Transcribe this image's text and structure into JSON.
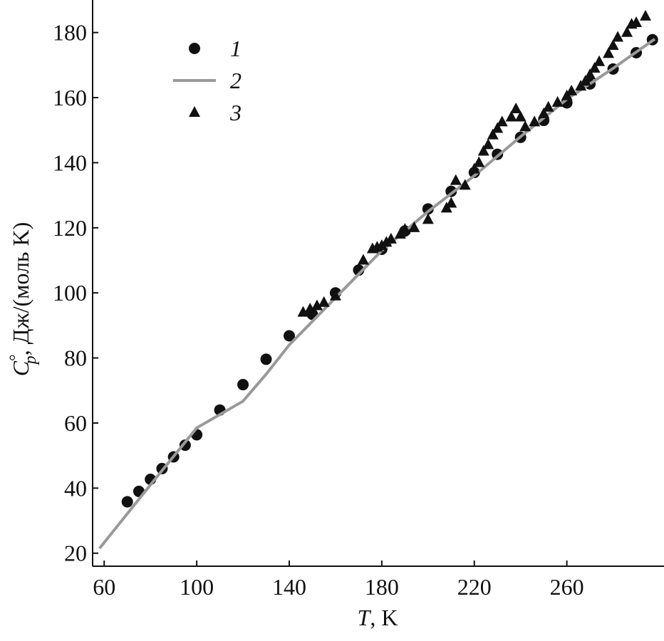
{
  "chart_data": {
    "type": "scatter",
    "xlabel": [
      "T",
      ", K"
    ],
    "ylabel": [
      "C",
      "°",
      "p",
      ", Дж/(моль K)"
    ],
    "xlim": [
      55,
      302
    ],
    "ylim": [
      16,
      190
    ],
    "xticks": [
      60,
      100,
      140,
      180,
      220,
      260
    ],
    "yticks": [
      20,
      40,
      60,
      80,
      100,
      120,
      140,
      160,
      180
    ],
    "series": [
      {
        "name": "1",
        "kind": "circle",
        "color": "#111111",
        "x": [
          70,
          75,
          80,
          85,
          90,
          95,
          100,
          110,
          120,
          130,
          140,
          150,
          160,
          170,
          180,
          190,
          200,
          210,
          220,
          230,
          240,
          250,
          260,
          270,
          280,
          290,
          297
        ],
        "values": [
          35.8,
          39,
          42.7,
          46,
          49.6,
          53.2,
          56.4,
          64,
          71.8,
          79.6,
          86.8,
          93.4,
          100,
          107,
          113.4,
          119,
          125.8,
          131.2,
          137,
          142.6,
          147.8,
          153,
          158.4,
          164.2,
          168.8,
          173.8,
          177.8
        ]
      },
      {
        "name": "2",
        "kind": "line",
        "color": "#999999",
        "x": [
          58,
          80,
          100,
          120,
          130,
          140,
          160,
          180,
          200,
          220,
          240,
          260,
          280,
          298
        ],
        "values": [
          21.5,
          41,
          58.5,
          66.7,
          75,
          84,
          98.5,
          113,
          125,
          136,
          148,
          159.5,
          169,
          178
        ]
      },
      {
        "name": "3",
        "kind": "triangle",
        "color": "#111111",
        "x": [
          146,
          149,
          152,
          155,
          160,
          172,
          176,
          178,
          180,
          182,
          184,
          188,
          190,
          194,
          200,
          208,
          210,
          212,
          216,
          220,
          222,
          224,
          226,
          228,
          230,
          232,
          236,
          238,
          240,
          242,
          246,
          250,
          252,
          256,
          260,
          262,
          266,
          268,
          270,
          272,
          274,
          278,
          280,
          282,
          286,
          288,
          290,
          294
        ],
        "values": [
          94,
          95,
          96,
          97,
          99,
          110,
          113.5,
          114,
          114.5,
          115.5,
          116.5,
          118,
          119.5,
          120,
          122.5,
          126,
          127.5,
          134.5,
          133,
          138,
          140,
          143.5,
          145.5,
          148.5,
          150.5,
          152.5,
          154,
          156.5,
          154,
          151,
          152.5,
          155,
          157,
          158.5,
          160.5,
          162,
          163.5,
          165,
          167,
          169,
          171,
          173.5,
          176,
          178.5,
          180,
          182.5,
          183,
          185
        ]
      }
    ]
  }
}
